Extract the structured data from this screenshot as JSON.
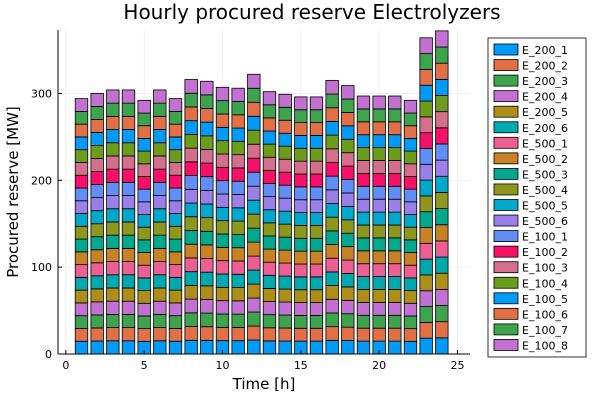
{
  "chart_data": {
    "type": "bar",
    "stacked": true,
    "title": "Hourly procured reserve Electrolyzers",
    "xlabel": "Time [h]",
    "ylabel": "Procured reserve [MW]",
    "xlim": [
      -0.5,
      25.8
    ],
    "ylim": [
      0,
      373
    ],
    "xticks": [
      0,
      5,
      10,
      15,
      20,
      25
    ],
    "yticks": [
      0,
      100,
      200,
      300
    ],
    "grid": true,
    "legend_position": "right",
    "x": [
      1,
      2,
      3,
      4,
      5,
      6,
      7,
      8,
      9,
      10,
      11,
      12,
      13,
      14,
      15,
      16,
      17,
      18,
      19,
      20,
      21,
      22,
      23,
      24
    ],
    "totals": [
      294,
      300,
      304,
      304,
      292,
      304,
      294,
      316,
      314,
      307,
      306,
      322,
      302,
      299,
      296,
      296,
      315,
      309,
      297,
      297,
      297,
      292,
      364,
      372
    ],
    "series": [
      {
        "name": "E_200_1",
        "color": "#009af9"
      },
      {
        "name": "E_200_2",
        "color": "#e26f46"
      },
      {
        "name": "E_200_3",
        "color": "#3da44d"
      },
      {
        "name": "E_200_4",
        "color": "#c271d2"
      },
      {
        "name": "E_200_5",
        "color": "#ac8e18"
      },
      {
        "name": "E_200_6",
        "color": "#00a9ad"
      },
      {
        "name": "E_500_1",
        "color": "#ed5e93"
      },
      {
        "name": "E_500_2",
        "color": "#c68225"
      },
      {
        "name": "E_500_3",
        "color": "#00a98d"
      },
      {
        "name": "E_500_4",
        "color": "#8e971d"
      },
      {
        "name": "E_500_5",
        "color": "#00a8cb"
      },
      {
        "name": "E_500_6",
        "color": "#9b7fe9"
      },
      {
        "name": "E_100_1",
        "color": "#618df6"
      },
      {
        "name": "E_100_2",
        "color": "#f61067"
      },
      {
        "name": "E_100_3",
        "color": "#d36e8c"
      },
      {
        "name": "E_100_4",
        "color": "#6b9c1b"
      },
      {
        "name": "E_100_5",
        "color": "#009af9"
      },
      {
        "name": "E_100_6",
        "color": "#e26f46"
      },
      {
        "name": "E_100_7",
        "color": "#3da44d"
      },
      {
        "name": "E_100_8",
        "color": "#c271d2"
      }
    ]
  }
}
